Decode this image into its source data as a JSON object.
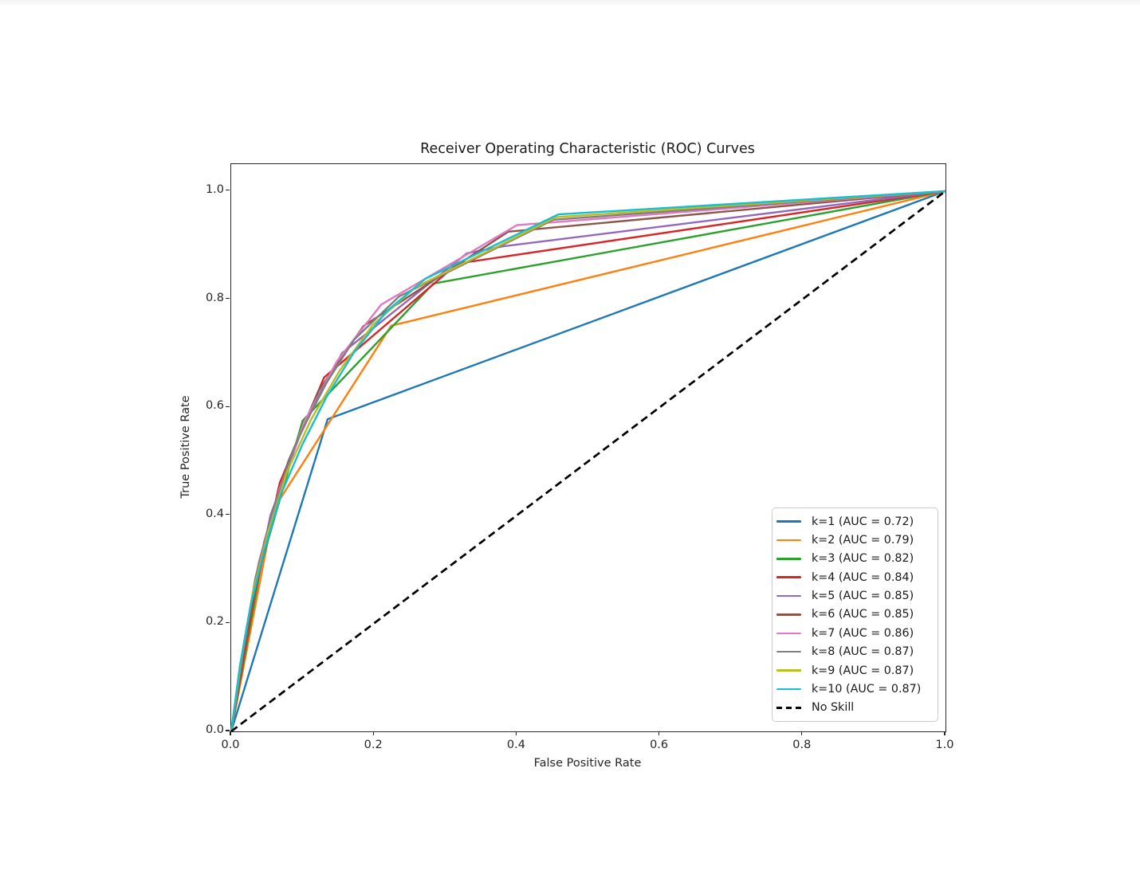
{
  "page": {
    "background": "#ffffff",
    "top_strip_color": "#f2f2f4"
  },
  "colors": {
    "spine": "#2a2a2a",
    "title_text": "#1a1a1a",
    "tick_text": "#262626",
    "legend_border": "#cccccc",
    "legend_background": "#ffffff"
  },
  "chart_data": {
    "type": "line",
    "title": "Receiver Operating Characteristic (ROC) Curves",
    "xlabel": "False Positive Rate",
    "ylabel": "True Positive Rate",
    "xlim": [
      0.0,
      1.0
    ],
    "ylim": [
      0.0,
      1.05
    ],
    "grid": false,
    "legend_position": "lower right",
    "x_ticks": [
      {
        "value": 0.0,
        "label": "0.0"
      },
      {
        "value": 0.2,
        "label": "0.2"
      },
      {
        "value": 0.4,
        "label": "0.4"
      },
      {
        "value": 0.6,
        "label": "0.6"
      },
      {
        "value": 0.8,
        "label": "0.8"
      },
      {
        "value": 1.0,
        "label": "1.0"
      }
    ],
    "y_ticks": [
      {
        "value": 0.0,
        "label": "0.0"
      },
      {
        "value": 0.2,
        "label": "0.2"
      },
      {
        "value": 0.4,
        "label": "0.4"
      },
      {
        "value": 0.6,
        "label": "0.6"
      },
      {
        "value": 0.8,
        "label": "0.8"
      },
      {
        "value": 1.0,
        "label": "1.0"
      }
    ],
    "series": [
      {
        "name": "k1",
        "legend_label": "k=1 (AUC = 0.72)",
        "auc": 0.72,
        "color": "#1f77b4",
        "style": "solid",
        "points": [
          [
            0,
            0
          ],
          [
            0.135,
            0.578
          ],
          [
            1,
            1
          ]
        ]
      },
      {
        "name": "k2",
        "legend_label": "k=2 (AUC = 0.79)",
        "auc": 0.79,
        "color": "#ff7f0e",
        "style": "solid",
        "points": [
          [
            0,
            0
          ],
          [
            0.06,
            0.413
          ],
          [
            0.224,
            0.751
          ],
          [
            1,
            1
          ]
        ]
      },
      {
        "name": "k3",
        "legend_label": "k=3 (AUC = 0.82)",
        "auc": 0.82,
        "color": "#2ca02c",
        "style": "solid",
        "points": [
          [
            0,
            0
          ],
          [
            0.042,
            0.31
          ],
          [
            0.1,
            0.575
          ],
          [
            0.283,
            0.829
          ],
          [
            1,
            1
          ]
        ]
      },
      {
        "name": "k4",
        "legend_label": "k=4 (AUC = 0.84)",
        "auc": 0.84,
        "color": "#d62728",
        "style": "solid",
        "points": [
          [
            0,
            0
          ],
          [
            0.032,
            0.25
          ],
          [
            0.068,
            0.46
          ],
          [
            0.13,
            0.655
          ],
          [
            0.317,
            0.866
          ],
          [
            1,
            1
          ]
        ]
      },
      {
        "name": "k5",
        "legend_label": "k=5 (AUC = 0.85)",
        "auc": 0.85,
        "color": "#9467bd",
        "style": "solid",
        "points": [
          [
            0,
            0
          ],
          [
            0.026,
            0.215
          ],
          [
            0.055,
            0.4
          ],
          [
            0.098,
            0.555
          ],
          [
            0.155,
            0.7
          ],
          [
            0.33,
            0.885
          ],
          [
            0.381,
            0.898
          ],
          [
            1,
            1
          ]
        ]
      },
      {
        "name": "k6",
        "legend_label": "k=6 (AUC = 0.85)",
        "auc": 0.85,
        "color": "#8c564b",
        "style": "solid",
        "points": [
          [
            0,
            0
          ],
          [
            0.022,
            0.185
          ],
          [
            0.046,
            0.35
          ],
          [
            0.08,
            0.5
          ],
          [
            0.122,
            0.63
          ],
          [
            0.185,
            0.75
          ],
          [
            0.388,
            0.925
          ],
          [
            1,
            1
          ]
        ]
      },
      {
        "name": "k7",
        "legend_label": "k=7 (AUC = 0.86)",
        "auc": 0.86,
        "color": "#e377c2",
        "style": "solid",
        "points": [
          [
            0,
            0
          ],
          [
            0.018,
            0.165
          ],
          [
            0.039,
            0.315
          ],
          [
            0.068,
            0.45
          ],
          [
            0.103,
            0.575
          ],
          [
            0.148,
            0.685
          ],
          [
            0.21,
            0.79
          ],
          [
            0.4,
            0.937
          ],
          [
            1,
            1
          ]
        ]
      },
      {
        "name": "k8",
        "legend_label": "k=8 (AUC = 0.87)",
        "auc": 0.87,
        "color": "#7f7f7f",
        "style": "solid",
        "points": [
          [
            0,
            0
          ],
          [
            0.016,
            0.147
          ],
          [
            0.034,
            0.285
          ],
          [
            0.059,
            0.41
          ],
          [
            0.088,
            0.525
          ],
          [
            0.126,
            0.63
          ],
          [
            0.172,
            0.725
          ],
          [
            0.235,
            0.805
          ],
          [
            0.451,
            0.947
          ],
          [
            1,
            1
          ]
        ]
      },
      {
        "name": "k9",
        "legend_label": "k=9 (AUC = 0.87)",
        "auc": 0.87,
        "color": "#bcbd22",
        "style": "solid",
        "points": [
          [
            0,
            0
          ],
          [
            0.014,
            0.132
          ],
          [
            0.03,
            0.255
          ],
          [
            0.052,
            0.37
          ],
          [
            0.078,
            0.48
          ],
          [
            0.112,
            0.578
          ],
          [
            0.152,
            0.668
          ],
          [
            0.198,
            0.752
          ],
          [
            0.258,
            0.822
          ],
          [
            0.455,
            0.952
          ],
          [
            1,
            1
          ]
        ]
      },
      {
        "name": "k10",
        "legend_label": "k=10 (AUC = 0.87)",
        "auc": 0.87,
        "color": "#17becf",
        "style": "solid",
        "points": [
          [
            0,
            0
          ],
          [
            0.012,
            0.12
          ],
          [
            0.027,
            0.232
          ],
          [
            0.047,
            0.338
          ],
          [
            0.07,
            0.44
          ],
          [
            0.1,
            0.532
          ],
          [
            0.133,
            0.618
          ],
          [
            0.172,
            0.702
          ],
          [
            0.218,
            0.778
          ],
          [
            0.272,
            0.838
          ],
          [
            0.458,
            0.957
          ],
          [
            1,
            1
          ]
        ]
      },
      {
        "name": "no-skill",
        "legend_label": "No Skill",
        "color": "#000000",
        "style": "dashed",
        "points": [
          [
            0,
            0
          ],
          [
            1,
            1
          ]
        ]
      }
    ]
  }
}
